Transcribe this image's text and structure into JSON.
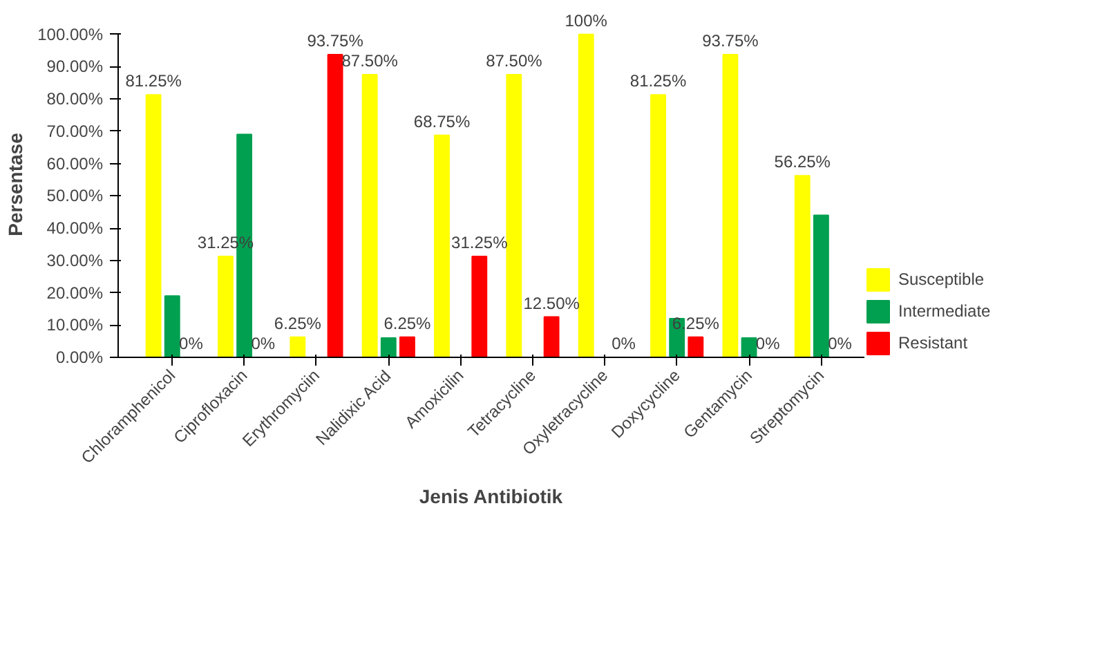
{
  "chart_data": {
    "type": "bar",
    "xlabel": "Jenis Antibiotik",
    "ylabel": "Persentase",
    "categories": [
      "Chloramphenicol",
      "Ciprofloxacin",
      "Erythromyciin",
      "Nalidixic Acid",
      "Amoxicilin",
      "Tetracycline",
      "Oxyletracycline",
      "Doxycycline",
      "Gentamycin",
      "Streptomycin"
    ],
    "series": [
      {
        "name": "Susceptible",
        "color": "#ffff00",
        "values": [
          81.25,
          31.25,
          6.25,
          87.5,
          68.75,
          87.5,
          100,
          81.25,
          93.75,
          56.25
        ],
        "value_labels": [
          "81.25%",
          "31.25%",
          "6.25%",
          "87.50%",
          "68.75%",
          "87.50%",
          "100%",
          "81.25%",
          "93.75%",
          "56.25%"
        ]
      },
      {
        "name": "Intermediate",
        "color": "#00a050",
        "values": [
          19,
          69,
          0,
          6,
          0,
          0,
          0,
          12,
          6,
          44
        ]
      },
      {
        "name": "Resistant",
        "color": "#ff0000",
        "values": [
          0,
          0,
          93.75,
          6.25,
          31.25,
          12.5,
          0,
          6.25,
          0,
          0
        ],
        "value_labels": [
          "0%",
          "0%",
          "93.75%",
          "6.25%",
          "31.25%",
          "12.50%",
          "0%",
          "6.25%",
          "0%",
          "0%"
        ]
      }
    ],
    "ylim": [
      0,
      100
    ],
    "yticks": [
      {
        "value": 0,
        "label": "0.00%"
      },
      {
        "value": 10,
        "label": "10.00%"
      },
      {
        "value": 20,
        "label": "20.00%"
      },
      {
        "value": 30,
        "label": "30.00%"
      },
      {
        "value": 40,
        "label": "40.00%"
      },
      {
        "value": 50,
        "label": "50.00%"
      },
      {
        "value": 60,
        "label": "60.00%"
      },
      {
        "value": 70,
        "label": "70.00%"
      },
      {
        "value": 80,
        "label": "80.00%"
      },
      {
        "value": 90,
        "label": "90.00%"
      },
      {
        "value": 100,
        "label": "100.00%"
      }
    ],
    "legend": "bottom right"
  }
}
